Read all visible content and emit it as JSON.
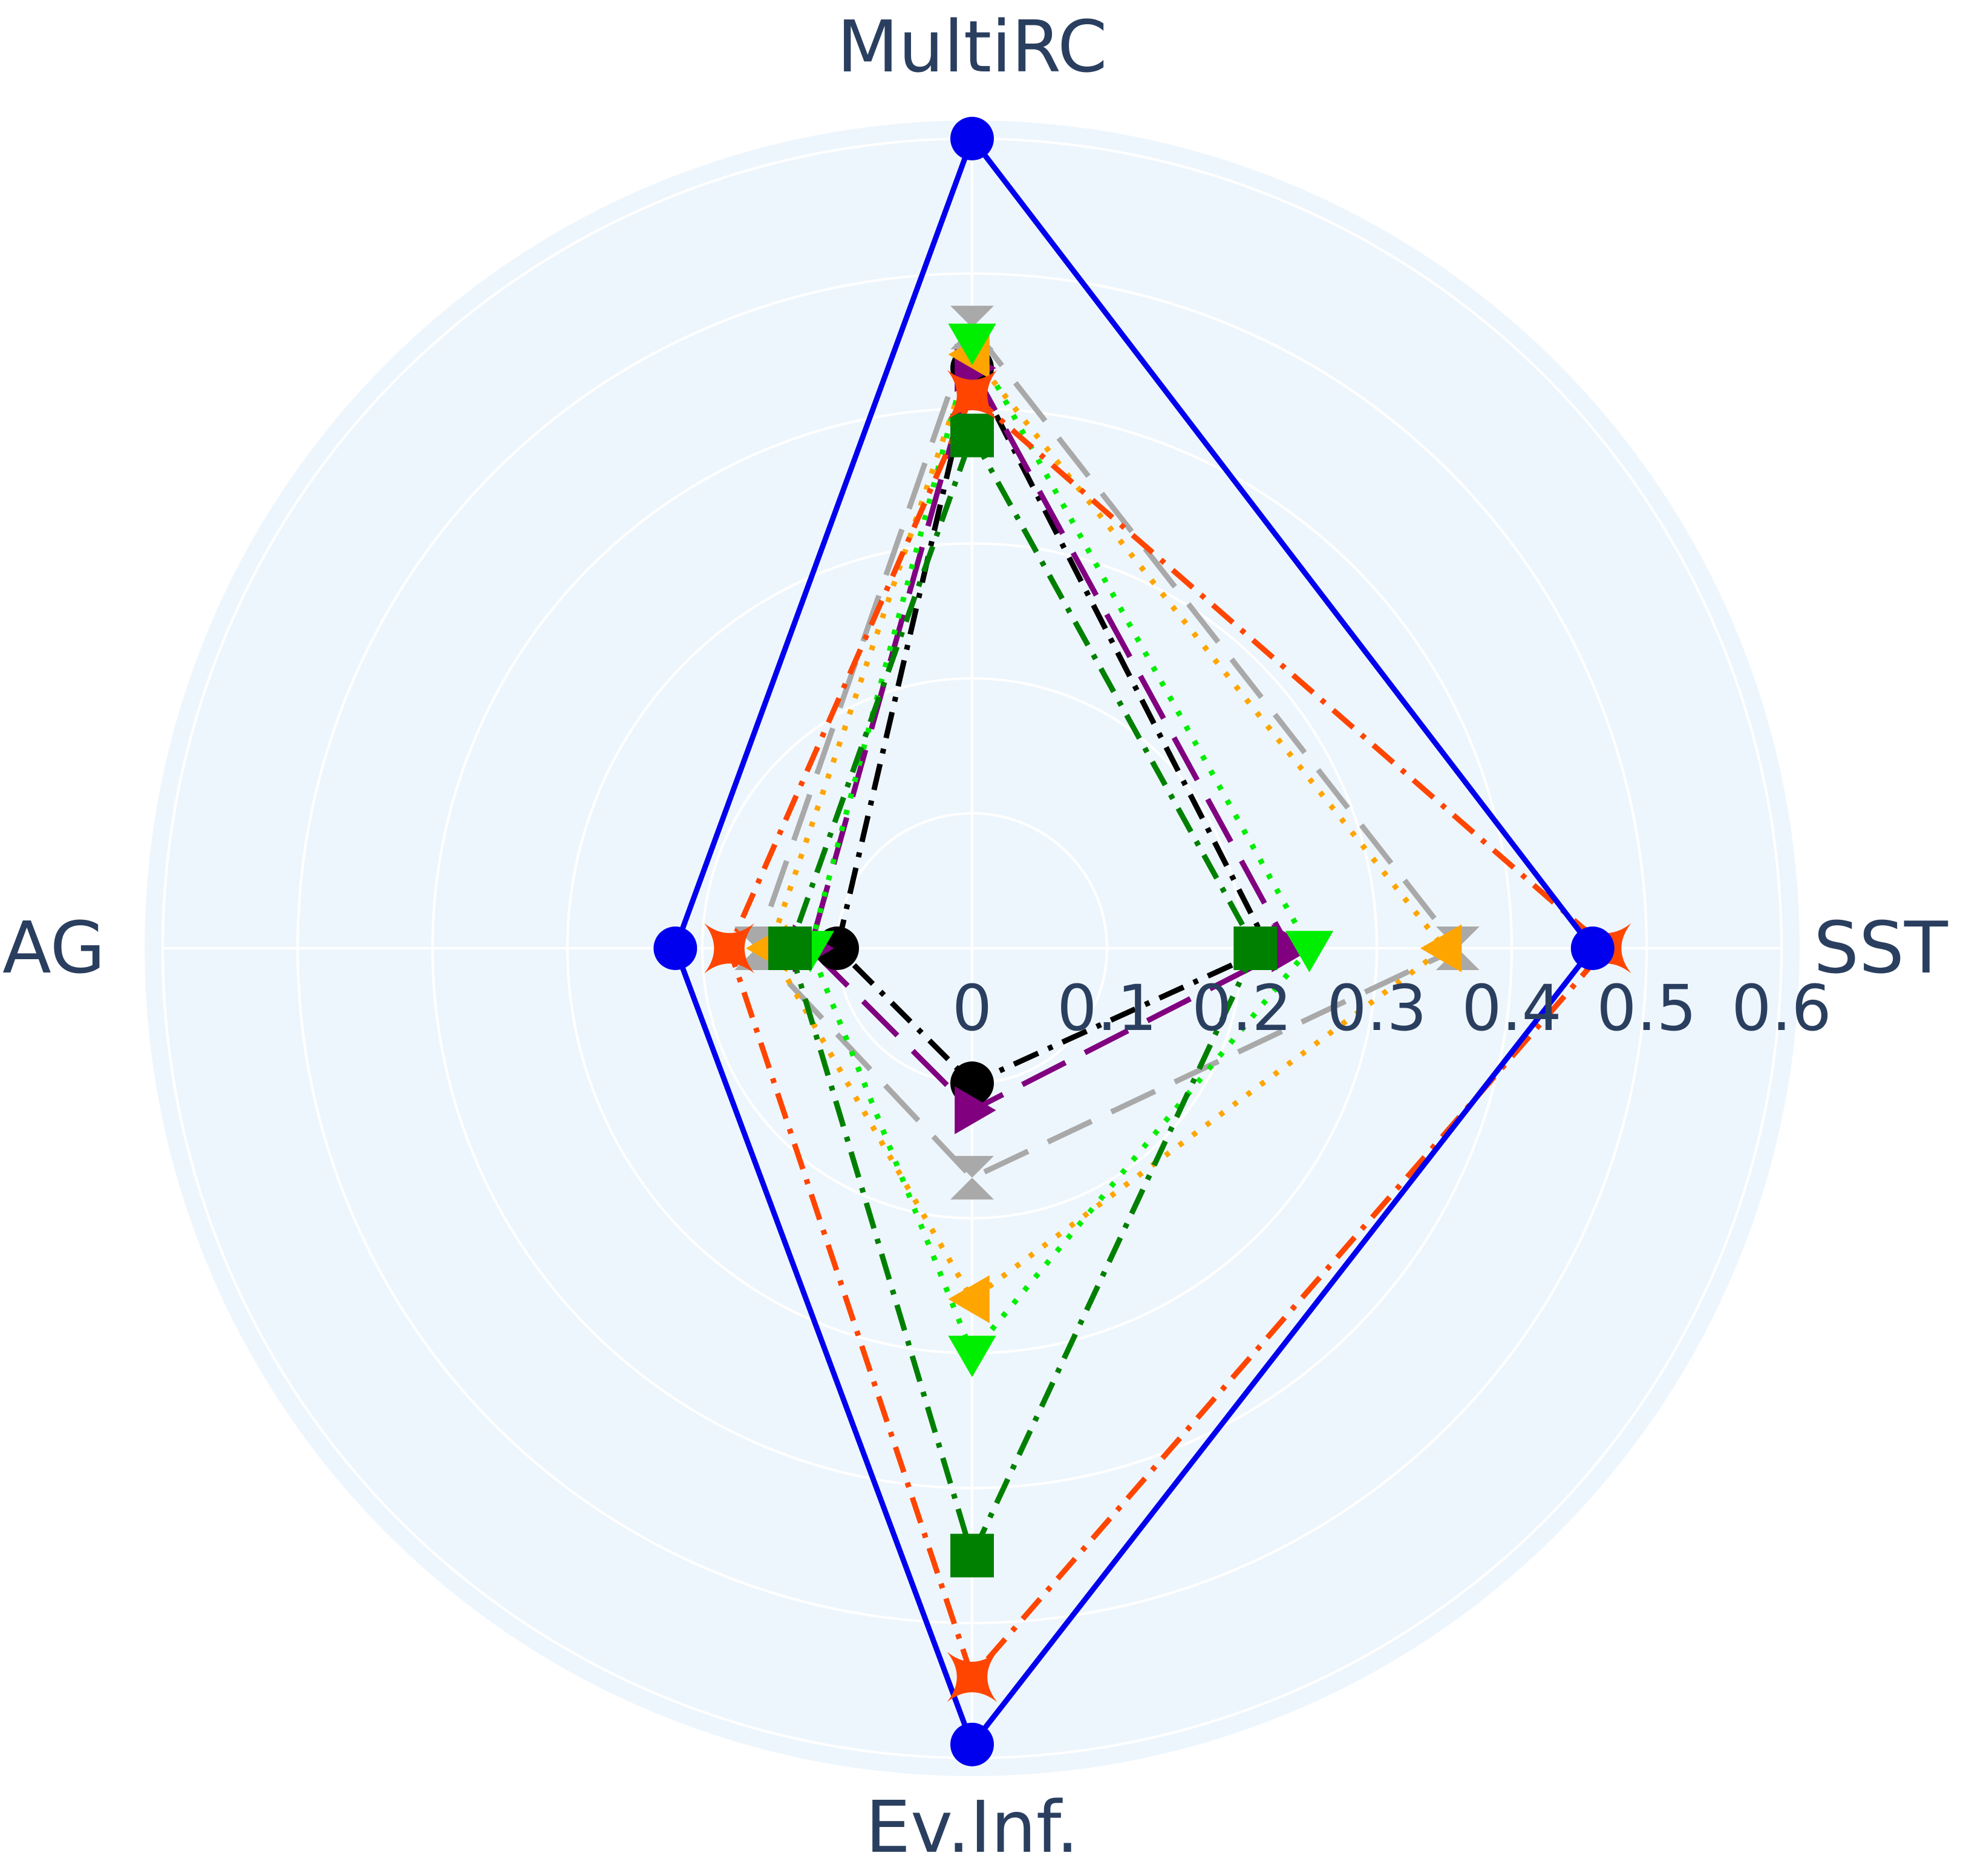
{
  "chart_data": {
    "type": "radar",
    "axes": [
      "MultiRC",
      "SST",
      "Ev.Inf.",
      "AG"
    ],
    "radial_range": [
      0,
      0.6
    ],
    "radial_ticks": [
      "0",
      "0.1",
      "0.2",
      "0.3",
      "0.4",
      "0.5",
      "0.6"
    ],
    "grid": true,
    "legend": "none",
    "series": [
      {
        "color": "#0000ee",
        "dash": "solid",
        "marker": "circle",
        "values": [
          0.6,
          0.46,
          0.59,
          0.22
        ]
      },
      {
        "color": "#ff4500",
        "dash": "dashdot",
        "marker": "star",
        "values": [
          0.41,
          0.47,
          0.54,
          0.18
        ]
      },
      {
        "color": "#008000",
        "dash": "dashdot",
        "marker": "square",
        "values": [
          0.38,
          0.21,
          0.45,
          0.135
        ]
      },
      {
        "color": "#00ee00",
        "dash": "dot",
        "marker": "triangle-down",
        "values": [
          0.45,
          0.25,
          0.3,
          0.12
        ]
      },
      {
        "color": "#ffa500",
        "dash": "dot",
        "marker": "triangle-left",
        "values": [
          0.44,
          0.35,
          0.26,
          0.15
        ]
      },
      {
        "color": "#a9a9a9",
        "dash": "longdash",
        "marker": "hourglass",
        "values": [
          0.46,
          0.36,
          0.17,
          0.16
        ]
      },
      {
        "color": "#800080",
        "dash": "longdash",
        "marker": "triangle-right",
        "values": [
          0.43,
          0.235,
          0.12,
          0.12
        ]
      },
      {
        "color": "#000000",
        "dash": "dashdot",
        "marker": "circle",
        "values": [
          0.43,
          0.22,
          0.1,
          0.1
        ]
      }
    ]
  }
}
